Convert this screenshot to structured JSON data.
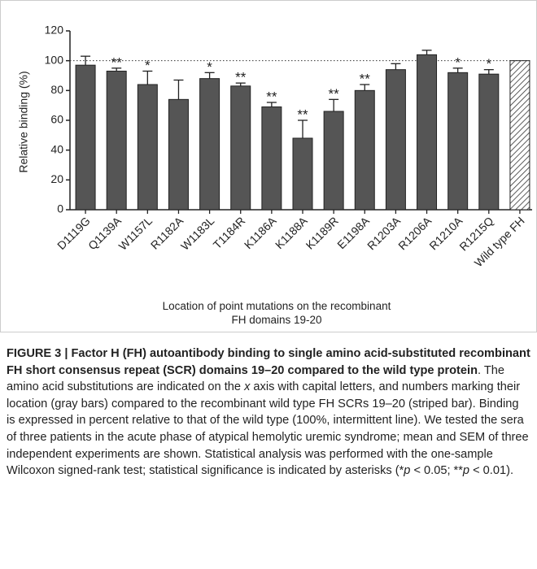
{
  "chart_data": {
    "type": "bar",
    "ylabel": "Relative binding (%)",
    "xlabel": "Location of point mutations on the recombinant FH domains 19-20",
    "categories": [
      "D1119G",
      "Q1139A",
      "W1157L",
      "R1182A",
      "W1183L",
      "T1184R",
      "K1186A",
      "K1188A",
      "K1189R",
      "E1198A",
      "R1203A",
      "R1206A",
      "R1210A",
      "R1215Q",
      "Wild type FH"
    ],
    "values": [
      97,
      93,
      84,
      74,
      88,
      83,
      69,
      48,
      66,
      80,
      94,
      104,
      92,
      91,
      100
    ],
    "errors": [
      6,
      2,
      9,
      13,
      4,
      2,
      3,
      12,
      8,
      4,
      4,
      3,
      3,
      3,
      null
    ],
    "annotations": [
      null,
      "**",
      "*",
      null,
      "*",
      "**",
      "**",
      "**",
      "**",
      "**",
      null,
      null,
      "*",
      "*",
      null
    ],
    "hatched": [
      false,
      false,
      false,
      false,
      false,
      false,
      false,
      false,
      false,
      false,
      false,
      false,
      false,
      false,
      true
    ],
    "color": "#555555",
    "reference_line": 100,
    "ylim": [
      0,
      120
    ],
    "yticks": [
      0,
      20,
      40,
      60,
      80,
      100,
      120
    ]
  },
  "caption": {
    "label": "FIGURE 3 |",
    "title": "Factor H (FH) autoantibody binding to single amino acid-substituted recombinant FH short consensus repeat (SCR) domains 19–20 compared to the wild type protein",
    "body": [
      ". The amino acid substitutions are indicated on the ",
      "x",
      " axis with capital letters, and numbers marking their location (gray bars) compared to the recombinant wild type FH SCRs 19–20 (striped bar). Binding is expressed in percent relative to that of the wild type (100%, intermittent line). We tested the sera of three patients in the acute phase of atypical hemolytic uremic syndrome; mean and SEM of three independent experiments are shown. Statistical analysis was performed with the one-sample Wilcoxon signed-rank test; statistical significance is indicated by asterisks (*",
      "p",
      " < 0.05; **",
      "p",
      " < 0.01)."
    ]
  }
}
